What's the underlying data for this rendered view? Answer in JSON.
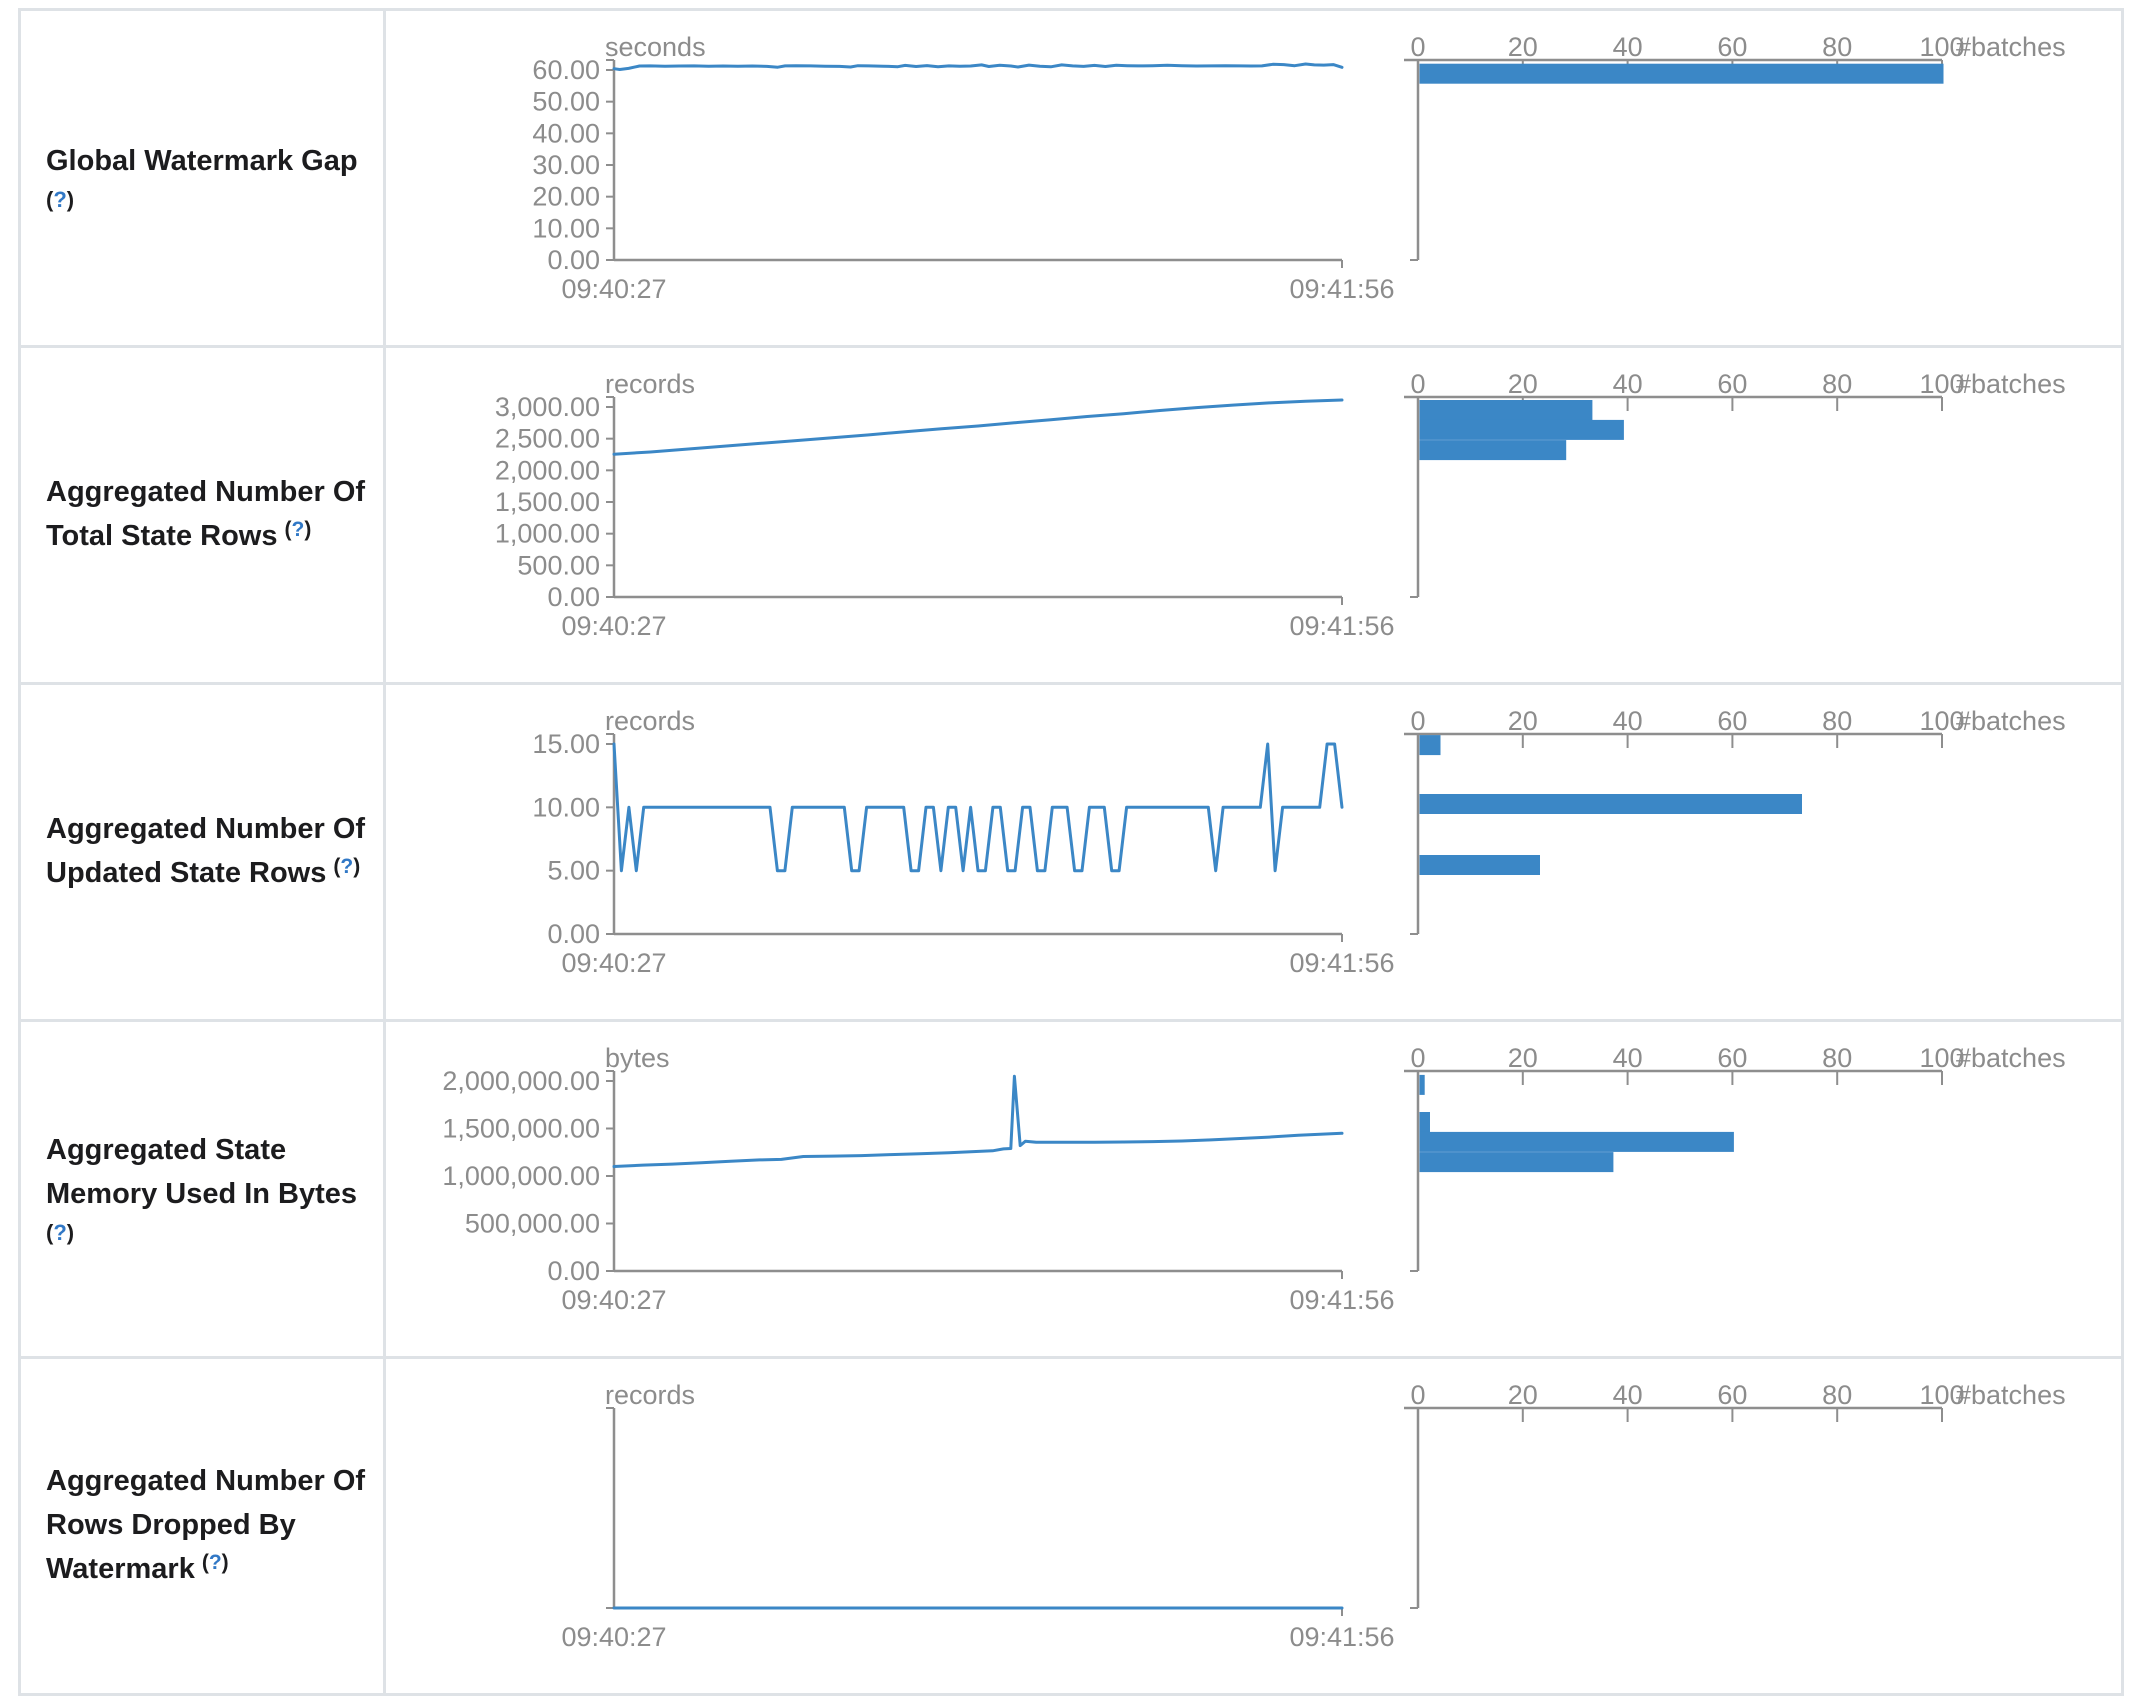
{
  "page": {
    "kind": "spark-structured-streaming-statistics",
    "colors": {
      "accent_blue": "#3b87c6",
      "axis_gray": "#8e8e8e",
      "tick_text_gray": "#8c8c8c",
      "title_text": "#1c1c1e",
      "help_link_blue": "#3178c6",
      "table_border": "#dee2e6",
      "background": "#ffffff"
    }
  },
  "timeline_axis": {
    "start_label": "09:40:27",
    "end_label": "09:41:56"
  },
  "histogram_axis": {
    "tick_labels": [
      "0",
      "20",
      "40",
      "60",
      "80",
      "100"
    ],
    "tick_values": [
      0,
      20,
      40,
      60,
      80,
      100
    ],
    "max": 100,
    "unit_label": "#batches"
  },
  "rows": [
    {
      "title_lines": [
        "Global Watermark Gap"
      ],
      "help_label_open": "(",
      "help_label_q": "?",
      "help_label_close": ")",
      "help_inline": false,
      "unit": "seconds",
      "y_tick_labels": [
        "60.00",
        "50.00",
        "40.00",
        "30.00",
        "20.00",
        "10.00",
        "0.00"
      ],
      "y_tick_values": [
        60,
        50,
        40,
        30,
        20,
        10,
        0
      ],
      "y_max": 60,
      "series": {
        "mode": "pairs",
        "points": [
          [
            0,
            60.4
          ],
          [
            0.008,
            60.15
          ],
          [
            0.02,
            60.5
          ],
          [
            0.035,
            61.25
          ],
          [
            0.05,
            61.3
          ],
          [
            0.07,
            61.2
          ],
          [
            0.09,
            61.25
          ],
          [
            0.11,
            61.3
          ],
          [
            0.13,
            61.2
          ],
          [
            0.15,
            61.25
          ],
          [
            0.17,
            61.2
          ],
          [
            0.19,
            61.25
          ],
          [
            0.21,
            61.15
          ],
          [
            0.225,
            60.9
          ],
          [
            0.235,
            61.3
          ],
          [
            0.25,
            61.35
          ],
          [
            0.27,
            61.3
          ],
          [
            0.29,
            61.2
          ],
          [
            0.31,
            61.15
          ],
          [
            0.325,
            60.95
          ],
          [
            0.335,
            61.35
          ],
          [
            0.35,
            61.3
          ],
          [
            0.37,
            61.2
          ],
          [
            0.39,
            61.05
          ],
          [
            0.4,
            61.45
          ],
          [
            0.415,
            61.1
          ],
          [
            0.43,
            61.4
          ],
          [
            0.445,
            61.05
          ],
          [
            0.46,
            61.3
          ],
          [
            0.475,
            61.2
          ],
          [
            0.49,
            61.25
          ],
          [
            0.505,
            61.6
          ],
          [
            0.515,
            61.1
          ],
          [
            0.53,
            61.5
          ],
          [
            0.545,
            61.25
          ],
          [
            0.555,
            60.95
          ],
          [
            0.57,
            61.55
          ],
          [
            0.585,
            61.2
          ],
          [
            0.6,
            61.0
          ],
          [
            0.615,
            61.6
          ],
          [
            0.63,
            61.3
          ],
          [
            0.645,
            61.15
          ],
          [
            0.66,
            61.45
          ],
          [
            0.675,
            61.1
          ],
          [
            0.69,
            61.5
          ],
          [
            0.705,
            61.35
          ],
          [
            0.72,
            61.3
          ],
          [
            0.74,
            61.35
          ],
          [
            0.76,
            61.5
          ],
          [
            0.78,
            61.35
          ],
          [
            0.8,
            61.25
          ],
          [
            0.82,
            61.3
          ],
          [
            0.84,
            61.35
          ],
          [
            0.86,
            61.3
          ],
          [
            0.875,
            61.25
          ],
          [
            0.89,
            61.3
          ],
          [
            0.905,
            61.8
          ],
          [
            0.92,
            61.7
          ],
          [
            0.935,
            61.35
          ],
          [
            0.95,
            61.9
          ],
          [
            0.962,
            61.6
          ],
          [
            0.975,
            61.55
          ],
          [
            0.988,
            61.7
          ],
          [
            1,
            60.85
          ]
        ]
      },
      "hist_bins": [
        {
          "count": 100,
          "pos": -0.033
        }
      ]
    },
    {
      "title_lines": [
        "Aggregated Number Of",
        "Total State Rows"
      ],
      "help_label_open": "(",
      "help_label_q": "?",
      "help_label_close": ")",
      "help_inline": true,
      "unit": "records",
      "y_tick_labels": [
        "3,000.00",
        "2,500.00",
        "2,000.00",
        "1,500.00",
        "1,000.00",
        "500.00",
        "0.00"
      ],
      "y_tick_values": [
        3000,
        2500,
        2000,
        1500,
        1000,
        500,
        0
      ],
      "y_max": 3000,
      "series": {
        "mode": "pairs",
        "points": [
          [
            0,
            2255
          ],
          [
            0.05,
            2290
          ],
          [
            0.1,
            2335
          ],
          [
            0.15,
            2380
          ],
          [
            0.2,
            2425
          ],
          [
            0.25,
            2470
          ],
          [
            0.3,
            2515
          ],
          [
            0.35,
            2560
          ],
          [
            0.4,
            2610
          ],
          [
            0.45,
            2655
          ],
          [
            0.5,
            2700
          ],
          [
            0.55,
            2750
          ],
          [
            0.6,
            2800
          ],
          [
            0.65,
            2850
          ],
          [
            0.7,
            2895
          ],
          [
            0.75,
            2945
          ],
          [
            0.8,
            2990
          ],
          [
            0.85,
            3030
          ],
          [
            0.9,
            3065
          ],
          [
            0.95,
            3090
          ],
          [
            1,
            3110
          ]
        ]
      },
      "hist_bins": [
        {
          "count": 33,
          "pos": -0.037
        },
        {
          "count": 39,
          "pos": 0.068
        },
        {
          "count": 28,
          "pos": 0.174
        }
      ]
    },
    {
      "title_lines": [
        "Aggregated Number Of",
        "Updated State Rows"
      ],
      "help_label_open": "(",
      "help_label_q": "?",
      "help_label_close": ")",
      "help_inline": true,
      "unit": "records",
      "y_tick_labels": [
        "15.00",
        "10.00",
        "5.00",
        "0.00"
      ],
      "y_tick_values": [
        15,
        10,
        5,
        0
      ],
      "y_max": 15,
      "series": {
        "mode": "rle",
        "values_rle": [
          [
            15,
            1
          ],
          [
            5,
            1
          ],
          [
            10,
            1
          ],
          [
            5,
            1
          ],
          [
            10,
            18
          ],
          [
            5,
            2
          ],
          [
            10,
            8
          ],
          [
            5,
            2
          ],
          [
            10,
            6
          ],
          [
            5,
            2
          ],
          [
            10,
            2
          ],
          [
            5,
            1
          ],
          [
            10,
            2
          ],
          [
            5,
            1
          ],
          [
            10,
            1
          ],
          [
            5,
            2
          ],
          [
            10,
            2
          ],
          [
            5,
            2
          ],
          [
            10,
            2
          ],
          [
            5,
            2
          ],
          [
            10,
            3
          ],
          [
            5,
            2
          ],
          [
            10,
            3
          ],
          [
            5,
            2
          ],
          [
            10,
            12
          ],
          [
            5,
            1
          ],
          [
            10,
            6
          ],
          [
            15,
            1
          ],
          [
            5,
            1
          ],
          [
            10,
            6
          ],
          [
            15,
            2
          ],
          [
            10,
            1
          ]
        ]
      },
      "hist_bins": [
        {
          "count": 4,
          "pos": -0.047
        },
        {
          "count": 73,
          "pos": 0.263
        },
        {
          "count": 23,
          "pos": 0.584
        }
      ]
    },
    {
      "title_lines": [
        "Aggregated State",
        "Memory Used In Bytes"
      ],
      "help_label_open": "(",
      "help_label_q": "?",
      "help_label_close": ")",
      "help_inline": false,
      "unit": "bytes",
      "y_tick_labels": [
        "2,000,000.00",
        "1,500,000.00",
        "1,000,000.00",
        "500,000.00",
        "0.00"
      ],
      "y_tick_values": [
        2000000,
        1500000,
        1000000,
        500000,
        0
      ],
      "y_max": 2000000,
      "series": {
        "mode": "pairs",
        "points": [
          [
            0,
            1100000
          ],
          [
            0.04,
            1115000
          ],
          [
            0.08,
            1125000
          ],
          [
            0.12,
            1140000
          ],
          [
            0.16,
            1155000
          ],
          [
            0.2,
            1170000
          ],
          [
            0.23,
            1175000
          ],
          [
            0.26,
            1205000
          ],
          [
            0.3,
            1210000
          ],
          [
            0.34,
            1215000
          ],
          [
            0.38,
            1225000
          ],
          [
            0.42,
            1235000
          ],
          [
            0.46,
            1245000
          ],
          [
            0.49,
            1255000
          ],
          [
            0.52,
            1265000
          ],
          [
            0.535,
            1285000
          ],
          [
            0.545,
            1290000
          ],
          [
            0.55,
            2050000
          ],
          [
            0.558,
            1320000
          ],
          [
            0.565,
            1365000
          ],
          [
            0.58,
            1355000
          ],
          [
            0.62,
            1355000
          ],
          [
            0.66,
            1355000
          ],
          [
            0.7,
            1358000
          ],
          [
            0.74,
            1362000
          ],
          [
            0.78,
            1368000
          ],
          [
            0.82,
            1380000
          ],
          [
            0.86,
            1395000
          ],
          [
            0.9,
            1410000
          ],
          [
            0.94,
            1430000
          ],
          [
            0.97,
            1440000
          ],
          [
            1,
            1450000
          ]
        ]
      },
      "hist_bins": [
        {
          "count": 1,
          "pos": -0.032
        },
        {
          "count": 2,
          "pos": 0.163
        },
        {
          "count": 60,
          "pos": 0.268
        },
        {
          "count": 37,
          "pos": 0.374
        }
      ]
    },
    {
      "title_lines": [
        "Aggregated Number Of",
        "Rows Dropped By",
        "Watermark"
      ],
      "help_label_open": "(",
      "help_label_q": "?",
      "help_label_close": ")",
      "help_inline": true,
      "unit": "records",
      "y_tick_labels": [],
      "y_tick_values": [],
      "y_max": 1,
      "series": {
        "mode": "pairs",
        "points": [
          [
            0,
            0
          ],
          [
            1,
            0
          ]
        ]
      },
      "hist_bins": []
    }
  ]
}
